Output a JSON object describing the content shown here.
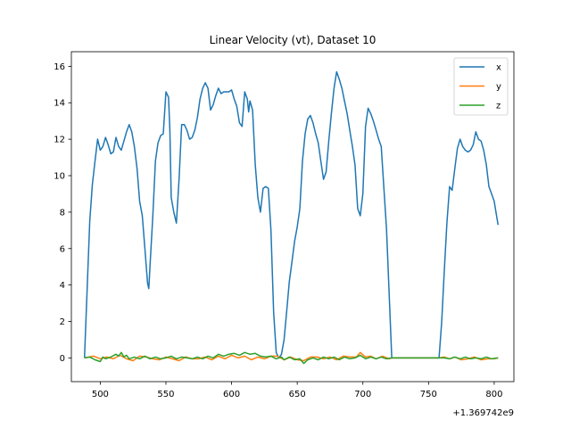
{
  "chart_data": {
    "type": "line",
    "title": "Linear Velocity (vt), Dataset 10",
    "xlabel": "",
    "ylabel": "",
    "x_offset_text": "+1.369742e9",
    "xlim": [
      478,
      815
    ],
    "ylim": [
      -1.3,
      16.8
    ],
    "x_ticks": [
      500,
      550,
      600,
      650,
      700,
      750,
      800
    ],
    "y_ticks": [
      0,
      2,
      4,
      6,
      8,
      10,
      12,
      14,
      16
    ],
    "grid": false,
    "legend_position": "top-right",
    "series": [
      {
        "name": "x",
        "color": "#1f77b4",
        "points": [
          [
            488,
            0
          ],
          [
            490,
            3.8
          ],
          [
            492,
            7.5
          ],
          [
            494,
            9.5
          ],
          [
            496,
            10.8
          ],
          [
            498,
            12.0
          ],
          [
            500,
            11.4
          ],
          [
            502,
            11.6
          ],
          [
            504,
            12.1
          ],
          [
            506,
            11.7
          ],
          [
            508,
            11.2
          ],
          [
            510,
            11.3
          ],
          [
            512,
            12.1
          ],
          [
            514,
            11.6
          ],
          [
            516,
            11.4
          ],
          [
            518,
            11.9
          ],
          [
            520,
            12.4
          ],
          [
            522,
            12.8
          ],
          [
            524,
            12.4
          ],
          [
            526,
            11.6
          ],
          [
            528,
            10.4
          ],
          [
            530,
            8.6
          ],
          [
            532,
            7.8
          ],
          [
            534,
            6.0
          ],
          [
            536,
            4.1
          ],
          [
            537,
            3.8
          ],
          [
            538,
            5.2
          ],
          [
            540,
            7.8
          ],
          [
            542,
            10.8
          ],
          [
            544,
            11.8
          ],
          [
            546,
            12.2
          ],
          [
            548,
            12.3
          ],
          [
            550,
            14.6
          ],
          [
            552,
            14.3
          ],
          [
            553,
            12.5
          ],
          [
            554,
            8.8
          ],
          [
            556,
            8.0
          ],
          [
            558,
            7.4
          ],
          [
            560,
            9.8
          ],
          [
            562,
            12.8
          ],
          [
            564,
            12.8
          ],
          [
            566,
            12.5
          ],
          [
            568,
            12.0
          ],
          [
            570,
            12.1
          ],
          [
            572,
            12.5
          ],
          [
            574,
            13.2
          ],
          [
            576,
            14.2
          ],
          [
            578,
            14.8
          ],
          [
            580,
            15.1
          ],
          [
            582,
            14.8
          ],
          [
            584,
            13.6
          ],
          [
            586,
            13.9
          ],
          [
            588,
            14.4
          ],
          [
            590,
            14.8
          ],
          [
            592,
            14.5
          ],
          [
            594,
            14.6
          ],
          [
            596,
            14.6
          ],
          [
            598,
            14.6
          ],
          [
            600,
            14.7
          ],
          [
            602,
            14.2
          ],
          [
            604,
            13.8
          ],
          [
            606,
            12.9
          ],
          [
            608,
            12.7
          ],
          [
            610,
            14.6
          ],
          [
            612,
            14.2
          ],
          [
            613,
            13.5
          ],
          [
            614,
            14.1
          ],
          [
            616,
            13.6
          ],
          [
            618,
            10.6
          ],
          [
            620,
            8.8
          ],
          [
            622,
            8.0
          ],
          [
            624,
            9.3
          ],
          [
            626,
            9.4
          ],
          [
            628,
            9.3
          ],
          [
            630,
            7.0
          ],
          [
            632,
            2.5
          ],
          [
            634,
            0.3
          ],
          [
            636,
            0
          ],
          [
            638,
            0.2
          ],
          [
            640,
            1.0
          ],
          [
            642,
            2.6
          ],
          [
            644,
            4.2
          ],
          [
            646,
            5.3
          ],
          [
            648,
            6.4
          ],
          [
            650,
            7.2
          ],
          [
            652,
            8.2
          ],
          [
            654,
            10.8
          ],
          [
            656,
            12.3
          ],
          [
            658,
            13.1
          ],
          [
            660,
            13.3
          ],
          [
            662,
            12.9
          ],
          [
            664,
            12.3
          ],
          [
            666,
            11.8
          ],
          [
            668,
            10.8
          ],
          [
            670,
            9.8
          ],
          [
            672,
            10.2
          ],
          [
            674,
            11.9
          ],
          [
            676,
            13.4
          ],
          [
            678,
            14.8
          ],
          [
            680,
            15.7
          ],
          [
            682,
            15.3
          ],
          [
            684,
            14.8
          ],
          [
            686,
            14.1
          ],
          [
            688,
            13.4
          ],
          [
            690,
            12.5
          ],
          [
            692,
            11.6
          ],
          [
            694,
            10.6
          ],
          [
            696,
            8.2
          ],
          [
            698,
            7.8
          ],
          [
            700,
            9.0
          ],
          [
            702,
            12.7
          ],
          [
            704,
            13.7
          ],
          [
            706,
            13.4
          ],
          [
            708,
            13.0
          ],
          [
            710,
            12.5
          ],
          [
            712,
            12.0
          ],
          [
            714,
            11.6
          ],
          [
            716,
            9.3
          ],
          [
            718,
            7.1
          ],
          [
            720,
            3.5
          ],
          [
            722,
            0
          ],
          [
            730,
            0
          ],
          [
            740,
            0
          ],
          [
            750,
            0
          ],
          [
            758,
            0
          ],
          [
            760,
            2.0
          ],
          [
            762,
            4.8
          ],
          [
            764,
            7.4
          ],
          [
            766,
            9.4
          ],
          [
            768,
            9.2
          ],
          [
            770,
            10.4
          ],
          [
            772,
            11.5
          ],
          [
            774,
            12.0
          ],
          [
            776,
            11.6
          ],
          [
            778,
            11.4
          ],
          [
            780,
            11.3
          ],
          [
            782,
            11.4
          ],
          [
            784,
            11.7
          ],
          [
            786,
            12.4
          ],
          [
            788,
            12.0
          ],
          [
            790,
            11.9
          ],
          [
            792,
            11.4
          ],
          [
            794,
            10.6
          ],
          [
            796,
            9.4
          ],
          [
            798,
            9.0
          ],
          [
            800,
            8.6
          ],
          [
            802,
            7.7
          ],
          [
            803,
            7.3
          ]
        ]
      },
      {
        "name": "y",
        "color": "#ff7f0e",
        "points": [
          [
            488,
            0
          ],
          [
            495,
            0.1
          ],
          [
            500,
            -0.05
          ],
          [
            505,
            0.05
          ],
          [
            510,
            -0.05
          ],
          [
            515,
            0.15
          ],
          [
            520,
            -0.05
          ],
          [
            525,
            -0.15
          ],
          [
            530,
            0.1
          ],
          [
            535,
            0.05
          ],
          [
            540,
            -0.05
          ],
          [
            545,
            -0.1
          ],
          [
            550,
            0.05
          ],
          [
            555,
            -0.05
          ],
          [
            560,
            -0.15
          ],
          [
            565,
            0.05
          ],
          [
            570,
            -0.05
          ],
          [
            575,
            -0.05
          ],
          [
            580,
            0.05
          ],
          [
            585,
            -0.1
          ],
          [
            590,
            0.1
          ],
          [
            595,
            -0.05
          ],
          [
            600,
            0.15
          ],
          [
            605,
            0.0
          ],
          [
            610,
            0.1
          ],
          [
            615,
            -0.1
          ],
          [
            620,
            0.05
          ],
          [
            625,
            -0.05
          ],
          [
            630,
            0.1
          ],
          [
            635,
            0.1
          ],
          [
            640,
            -0.1
          ],
          [
            645,
            0.05
          ],
          [
            650,
            -0.1
          ],
          [
            655,
            -0.15
          ],
          [
            660,
            0.05
          ],
          [
            665,
            0.05
          ],
          [
            670,
            -0.05
          ],
          [
            675,
            0.05
          ],
          [
            680,
            -0.1
          ],
          [
            685,
            0.1
          ],
          [
            690,
            0.05
          ],
          [
            695,
            0.05
          ],
          [
            698,
            0.3
          ],
          [
            702,
            0.05
          ],
          [
            706,
            0.1
          ],
          [
            710,
            -0.05
          ],
          [
            715,
            0.1
          ],
          [
            720,
            -0.05
          ],
          [
            722,
            0
          ],
          [
            758,
            0
          ],
          [
            762,
            0.05
          ],
          [
            766,
            -0.05
          ],
          [
            770,
            0.05
          ],
          [
            775,
            -0.1
          ],
          [
            780,
            -0.05
          ],
          [
            785,
            0.05
          ],
          [
            790,
            -0.1
          ],
          [
            795,
            -0.05
          ],
          [
            800,
            -0.05
          ],
          [
            803,
            0
          ]
        ]
      },
      {
        "name": "z",
        "color": "#2ca02c",
        "points": [
          [
            488,
            0
          ],
          [
            492,
            0.05
          ],
          [
            496,
            -0.1
          ],
          [
            500,
            -0.2
          ],
          [
            502,
            0.05
          ],
          [
            504,
            -0.05
          ],
          [
            508,
            0.05
          ],
          [
            512,
            0.2
          ],
          [
            514,
            0.1
          ],
          [
            516,
            0.3
          ],
          [
            518,
            0.05
          ],
          [
            520,
            0.15
          ],
          [
            522,
            -0.05
          ],
          [
            526,
            0.05
          ],
          [
            530,
            -0.05
          ],
          [
            534,
            0.1
          ],
          [
            538,
            -0.05
          ],
          [
            542,
            0.05
          ],
          [
            546,
            -0.05
          ],
          [
            550,
            0.0
          ],
          [
            554,
            0.1
          ],
          [
            558,
            -0.05
          ],
          [
            562,
            0.05
          ],
          [
            566,
            0.0
          ],
          [
            570,
            -0.05
          ],
          [
            574,
            0.05
          ],
          [
            578,
            -0.05
          ],
          [
            582,
            0.1
          ],
          [
            586,
            0.0
          ],
          [
            590,
            0.2
          ],
          [
            594,
            0.1
          ],
          [
            598,
            0.2
          ],
          [
            602,
            0.25
          ],
          [
            606,
            0.15
          ],
          [
            610,
            0.3
          ],
          [
            614,
            0.2
          ],
          [
            618,
            0.25
          ],
          [
            622,
            0.1
          ],
          [
            626,
            0.05
          ],
          [
            630,
            0.1
          ],
          [
            634,
            -0.05
          ],
          [
            638,
            0.05
          ],
          [
            640,
            -0.1
          ],
          [
            644,
            0.05
          ],
          [
            648,
            -0.1
          ],
          [
            652,
            -0.05
          ],
          [
            655,
            -0.3
          ],
          [
            658,
            -0.1
          ],
          [
            662,
            0.0
          ],
          [
            666,
            -0.1
          ],
          [
            670,
            0.05
          ],
          [
            674,
            -0.05
          ],
          [
            678,
            0.05
          ],
          [
            682,
            -0.1
          ],
          [
            686,
            0.05
          ],
          [
            690,
            -0.05
          ],
          [
            694,
            0.0
          ],
          [
            698,
            0.15
          ],
          [
            702,
            -0.05
          ],
          [
            706,
            0.05
          ],
          [
            710,
            -0.05
          ],
          [
            714,
            0.05
          ],
          [
            718,
            -0.05
          ],
          [
            722,
            0
          ],
          [
            758,
            0
          ],
          [
            762,
            0.0
          ],
          [
            766,
            -0.05
          ],
          [
            770,
            0.05
          ],
          [
            774,
            -0.05
          ],
          [
            778,
            0.05
          ],
          [
            782,
            -0.05
          ],
          [
            786,
            0.0
          ],
          [
            790,
            -0.05
          ],
          [
            794,
            0.05
          ],
          [
            798,
            -0.05
          ],
          [
            803,
            0
          ]
        ]
      }
    ]
  }
}
